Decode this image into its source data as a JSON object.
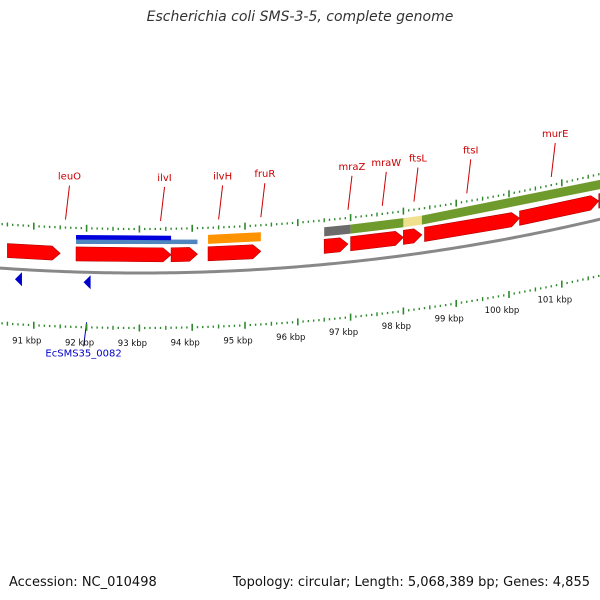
{
  "title": "Escherichia coli SMS-3-5, complete genome",
  "footer": {
    "accession": "Accession: NC_010498",
    "stats": "Topology: circular; Length: 5,068,389 bp; Genes: 4,855"
  },
  "colors": {
    "gene": "#ff0000",
    "gene_label": "#cc0000",
    "tick": "#2d8a2d",
    "backbone": "#888888",
    "feature_label": "#0000cc",
    "dark_blue": "#0000dd",
    "steel_blue": "#4f86c0",
    "orange": "#ff9200",
    "gray": "#6b6b6b",
    "olive": "#6f9a2c",
    "khaki": "#efe08e"
  },
  "axis": {
    "unit": "kbp",
    "ticks": [
      {
        "kbp": 91,
        "label": "91 kbp"
      },
      {
        "kbp": 92,
        "label": "92 kbp"
      },
      {
        "kbp": 93,
        "label": "93 kbp"
      },
      {
        "kbp": 94,
        "label": "94 kbp"
      },
      {
        "kbp": 95,
        "label": "95 kbp"
      },
      {
        "kbp": 96,
        "label": "96 kbp"
      },
      {
        "kbp": 97,
        "label": "97 kbp"
      },
      {
        "kbp": 98,
        "label": "98 kbp"
      },
      {
        "kbp": 99,
        "label": "99 kbp"
      },
      {
        "kbp": 100,
        "label": "100 kbp"
      },
      {
        "kbp": 101,
        "label": "101 kbp"
      }
    ]
  },
  "gene_labels": [
    {
      "name": "leuO",
      "kbp": 91.6
    },
    {
      "name": "ilvI",
      "kbp": 93.4
    },
    {
      "name": "ilvH",
      "kbp": 94.5
    },
    {
      "name": "fruR",
      "kbp": 95.3
    },
    {
      "name": "mraZ",
      "kbp": 96.95
    },
    {
      "name": "mraW",
      "kbp": 97.6
    },
    {
      "name": "ftsL",
      "kbp": 98.2
    },
    {
      "name": "ftsI",
      "kbp": 99.2
    },
    {
      "name": "murE",
      "kbp": 100.8
    }
  ],
  "genes": [
    {
      "start": 90.5,
      "end": 91.5,
      "strand": "+"
    },
    {
      "start": 91.8,
      "end": 93.6,
      "strand": "+"
    },
    {
      "start": 93.6,
      "end": 94.1,
      "strand": "+"
    },
    {
      "start": 94.3,
      "end": 95.3,
      "strand": "+"
    },
    {
      "start": 96.5,
      "end": 96.95,
      "strand": "+"
    },
    {
      "start": 97.0,
      "end": 98.0,
      "strand": "+"
    },
    {
      "start": 98.0,
      "end": 98.35,
      "strand": "+"
    },
    {
      "start": 98.4,
      "end": 100.2,
      "strand": "+"
    },
    {
      "start": 100.2,
      "end": 101.7,
      "strand": "+"
    },
    {
      "start": 101.7,
      "end": 102.2,
      "strand": "+"
    }
  ],
  "domains": [
    {
      "start": 91.8,
      "end": 94.1,
      "color": "steel_blue",
      "layer": "low"
    },
    {
      "start": 91.8,
      "end": 93.6,
      "color": "dark_blue",
      "layer": "high"
    },
    {
      "start": 94.3,
      "end": 95.3,
      "color": "orange",
      "layer": "full"
    },
    {
      "start": 96.5,
      "end": 97.0,
      "color": "gray",
      "layer": "full"
    },
    {
      "start": 97.0,
      "end": 98.0,
      "color": "olive",
      "layer": "full"
    },
    {
      "start": 98.0,
      "end": 98.35,
      "color": "khaki",
      "layer": "full"
    },
    {
      "start": 98.35,
      "end": 102.2,
      "color": "olive",
      "layer": "full"
    }
  ],
  "features": [
    {
      "name": "EcSMS35_0082",
      "kbp": 92.0
    },
    {
      "name": "",
      "kbp": 90.7
    }
  ]
}
